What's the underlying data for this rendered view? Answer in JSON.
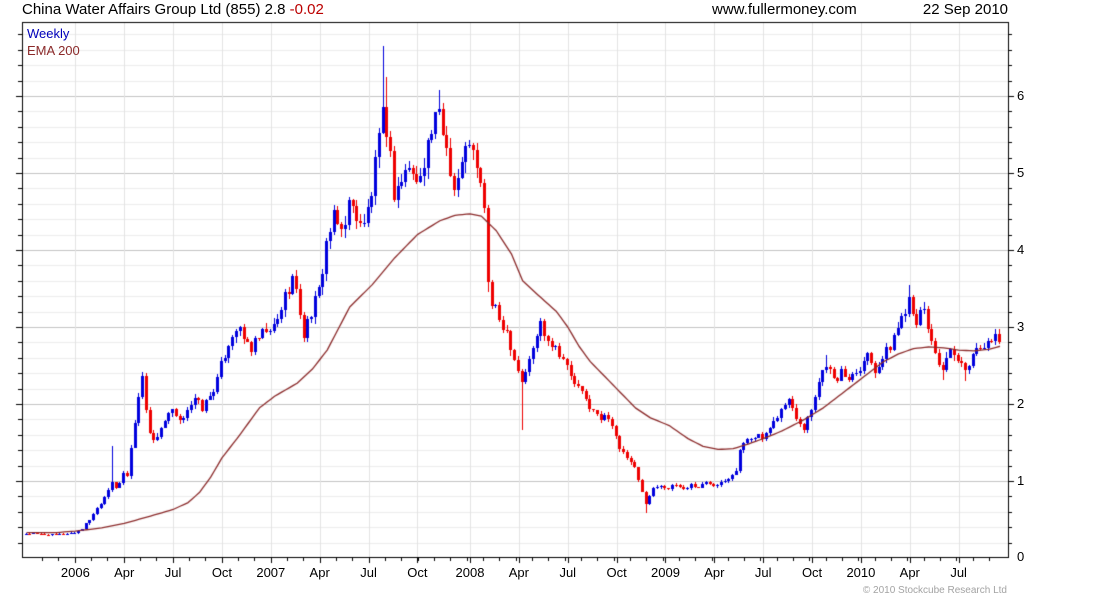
{
  "header": {
    "instrument": "China Water Affairs Group Ltd (855)",
    "last_price": "2.8",
    "change": "-0.02",
    "site": "www.fullermoney.com",
    "date": "22 Sep 2010"
  },
  "legend": {
    "series": "Weekly",
    "overlay": "EMA 200"
  },
  "footer": {
    "copyright": "© 2010 Stockcube Research Ltd"
  },
  "colors": {
    "up_candle": "#0000dd",
    "down_candle": "#ee0000",
    "ema_line": "#8b2a2a",
    "change_text": "#bb0000",
    "weekly_text": "#0000bb",
    "grid_minor": "#ededed",
    "grid_major": "#c3c3c3",
    "grid_vertical": "#e3e3e3",
    "axis": "#000000",
    "copyright_text": "#a3a3a3"
  },
  "chart_data": {
    "type": "candlestick",
    "frequency": "Weekly",
    "overlay": "EMA 200",
    "title": "China Water Affairs Group Ltd (855)",
    "last_close": 2.8,
    "weeks": 260,
    "y_axis": {
      "min": 0,
      "max": 6.96,
      "major_step": 1,
      "minor_step": 0.2,
      "labels": [
        "0",
        "1",
        "2",
        "3",
        "4",
        "5",
        "6"
      ]
    },
    "x_ticks": [
      [
        13,
        "2006"
      ],
      [
        26,
        "Apr"
      ],
      [
        39,
        "Jul"
      ],
      [
        52,
        "Oct"
      ],
      [
        65,
        "2007"
      ],
      [
        78,
        "Apr"
      ],
      [
        91,
        "Jul"
      ],
      [
        104,
        "Oct"
      ],
      [
        118,
        "2008"
      ],
      [
        131,
        "Apr"
      ],
      [
        144,
        "Jul"
      ],
      [
        157,
        "Oct"
      ],
      [
        170,
        "2009"
      ],
      [
        183,
        "Apr"
      ],
      [
        196,
        "Jul"
      ],
      [
        209,
        "Oct"
      ],
      [
        222,
        "2010"
      ],
      [
        235,
        "Apr"
      ],
      [
        248,
        "Jul"
      ]
    ],
    "close_anchors": [
      [
        0,
        0.32
      ],
      [
        4,
        0.31
      ],
      [
        8,
        0.3
      ],
      [
        11,
        0.32
      ],
      [
        13,
        0.33
      ],
      [
        15,
        0.38
      ],
      [
        17,
        0.5
      ],
      [
        19,
        0.65
      ],
      [
        21,
        0.8
      ],
      [
        23,
        1.0
      ],
      [
        24,
        0.92
      ],
      [
        25,
        0.95
      ],
      [
        26,
        1.1
      ],
      [
        27,
        1.05
      ],
      [
        28,
        1.45
      ],
      [
        29,
        1.75
      ],
      [
        30,
        2.1
      ],
      [
        31,
        2.35
      ],
      [
        32,
        1.95
      ],
      [
        33,
        1.65
      ],
      [
        34,
        1.5
      ],
      [
        36,
        1.7
      ],
      [
        38,
        1.85
      ],
      [
        39,
        1.9
      ],
      [
        41,
        1.75
      ],
      [
        43,
        1.95
      ],
      [
        45,
        2.05
      ],
      [
        47,
        1.95
      ],
      [
        49,
        2.1
      ],
      [
        51,
        2.3
      ],
      [
        52,
        2.5
      ],
      [
        54,
        2.8
      ],
      [
        56,
        3.0
      ],
      [
        58,
        2.85
      ],
      [
        60,
        2.72
      ],
      [
        62,
        2.85
      ],
      [
        64,
        2.95
      ],
      [
        65,
        2.9
      ],
      [
        67,
        3.1
      ],
      [
        69,
        3.4
      ],
      [
        71,
        3.65
      ],
      [
        73,
        3.2
      ],
      [
        74,
        2.9
      ],
      [
        76,
        3.2
      ],
      [
        78,
        3.45
      ],
      [
        80,
        4.1
      ],
      [
        82,
        4.4
      ],
      [
        84,
        4.25
      ],
      [
        86,
        4.6
      ],
      [
        88,
        4.45
      ],
      [
        90,
        4.3
      ],
      [
        92,
        4.75
      ],
      [
        94,
        5.4
      ],
      [
        95,
        5.7
      ],
      [
        96,
        5.6
      ],
      [
        97,
        5.2
      ],
      [
        98,
        4.75
      ],
      [
        100,
        4.9
      ],
      [
        102,
        5.1
      ],
      [
        104,
        4.85
      ],
      [
        106,
        5.2
      ],
      [
        108,
        5.55
      ],
      [
        110,
        5.75
      ],
      [
        112,
        5.35
      ],
      [
        114,
        4.8
      ],
      [
        116,
        5.1
      ],
      [
        118,
        5.45
      ],
      [
        120,
        5.0
      ],
      [
        122,
        4.6
      ],
      [
        123,
        3.55
      ],
      [
        124,
        3.3
      ],
      [
        126,
        3.1
      ],
      [
        128,
        2.95
      ],
      [
        130,
        2.6
      ],
      [
        132,
        2.3
      ],
      [
        134,
        2.55
      ],
      [
        136,
        2.9
      ],
      [
        137,
        3.05
      ],
      [
        139,
        2.85
      ],
      [
        141,
        2.75
      ],
      [
        143,
        2.6
      ],
      [
        145,
        2.35
      ],
      [
        147,
        2.2
      ],
      [
        149,
        2.05
      ],
      [
        151,
        1.9
      ],
      [
        153,
        1.8
      ],
      [
        155,
        1.85
      ],
      [
        157,
        1.6
      ],
      [
        158,
        1.4
      ],
      [
        160,
        1.3
      ],
      [
        162,
        1.15
      ],
      [
        164,
        0.85
      ],
      [
        165,
        0.72
      ],
      [
        167,
        0.9
      ],
      [
        169,
        0.95
      ],
      [
        171,
        0.9
      ],
      [
        173,
        0.95
      ],
      [
        175,
        0.9
      ],
      [
        177,
        0.95
      ],
      [
        179,
        0.92
      ],
      [
        181,
        0.98
      ],
      [
        183,
        0.95
      ],
      [
        185,
        1.0
      ],
      [
        187,
        1.05
      ],
      [
        189,
        1.15
      ],
      [
        190,
        1.4
      ],
      [
        192,
        1.55
      ],
      [
        194,
        1.6
      ],
      [
        196,
        1.55
      ],
      [
        198,
        1.65
      ],
      [
        200,
        1.85
      ],
      [
        202,
        2.0
      ],
      [
        203,
        2.05
      ],
      [
        205,
        1.85
      ],
      [
        207,
        1.7
      ],
      [
        209,
        1.95
      ],
      [
        211,
        2.3
      ],
      [
        213,
        2.55
      ],
      [
        215,
        2.3
      ],
      [
        217,
        2.4
      ],
      [
        219,
        2.35
      ],
      [
        221,
        2.45
      ],
      [
        222,
        2.5
      ],
      [
        224,
        2.65
      ],
      [
        226,
        2.45
      ],
      [
        228,
        2.6
      ],
      [
        230,
        2.75
      ],
      [
        232,
        3.0
      ],
      [
        234,
        3.25
      ],
      [
        235,
        3.4
      ],
      [
        237,
        3.1
      ],
      [
        239,
        3.2
      ],
      [
        240,
        3.0
      ],
      [
        241,
        2.8
      ],
      [
        243,
        2.55
      ],
      [
        244,
        2.45
      ],
      [
        246,
        2.65
      ],
      [
        248,
        2.55
      ],
      [
        250,
        2.4
      ],
      [
        251,
        2.55
      ],
      [
        252,
        2.65
      ],
      [
        254,
        2.75
      ],
      [
        256,
        2.85
      ],
      [
        257,
        2.75
      ],
      [
        258,
        2.88
      ],
      [
        259,
        2.8
      ]
    ],
    "wick_overrides": {
      "23": {
        "h": 1.45
      },
      "31": {
        "h": 2.42
      },
      "95": {
        "h": 6.65
      },
      "96": {
        "h": 6.25
      },
      "110": {
        "h": 6.08
      },
      "123": {
        "l": 3.45
      },
      "132": {
        "l": 1.66
      },
      "165": {
        "l": 0.58
      },
      "207": {
        "l": 1.62
      },
      "213": {
        "h": 2.64
      },
      "235": {
        "h": 3.55
      },
      "244": {
        "l": 2.31
      },
      "250": {
        "l": 2.3
      }
    },
    "ema_anchors": [
      [
        0,
        0.33
      ],
      [
        8,
        0.33
      ],
      [
        13,
        0.35
      ],
      [
        20,
        0.39
      ],
      [
        26,
        0.45
      ],
      [
        32,
        0.53
      ],
      [
        39,
        0.63
      ],
      [
        43,
        0.72
      ],
      [
        46,
        0.85
      ],
      [
        49,
        1.05
      ],
      [
        52,
        1.3
      ],
      [
        56,
        1.55
      ],
      [
        59,
        1.75
      ],
      [
        62,
        1.95
      ],
      [
        66,
        2.1
      ],
      [
        72,
        2.27
      ],
      [
        76,
        2.45
      ],
      [
        80,
        2.7
      ],
      [
        86,
        3.26
      ],
      [
        92,
        3.55
      ],
      [
        98,
        3.9
      ],
      [
        104,
        4.2
      ],
      [
        110,
        4.38
      ],
      [
        114,
        4.45
      ],
      [
        118,
        4.47
      ],
      [
        121,
        4.44
      ],
      [
        125,
        4.25
      ],
      [
        129,
        3.95
      ],
      [
        132,
        3.6
      ],
      [
        136,
        3.42
      ],
      [
        141,
        3.2
      ],
      [
        144,
        3.0
      ],
      [
        147,
        2.75
      ],
      [
        150,
        2.55
      ],
      [
        154,
        2.35
      ],
      [
        158,
        2.15
      ],
      [
        162,
        1.95
      ],
      [
        166,
        1.82
      ],
      [
        171,
        1.72
      ],
      [
        176,
        1.55
      ],
      [
        180,
        1.45
      ],
      [
        184,
        1.41
      ],
      [
        188,
        1.42
      ],
      [
        192,
        1.48
      ],
      [
        196,
        1.55
      ],
      [
        201,
        1.65
      ],
      [
        207,
        1.8
      ],
      [
        212,
        1.95
      ],
      [
        216,
        2.1
      ],
      [
        220,
        2.25
      ],
      [
        224,
        2.4
      ],
      [
        228,
        2.55
      ],
      [
        232,
        2.65
      ],
      [
        236,
        2.72
      ],
      [
        240,
        2.74
      ],
      [
        244,
        2.73
      ],
      [
        248,
        2.7
      ],
      [
        252,
        2.69
      ],
      [
        256,
        2.71
      ],
      [
        259,
        2.75
      ]
    ]
  }
}
